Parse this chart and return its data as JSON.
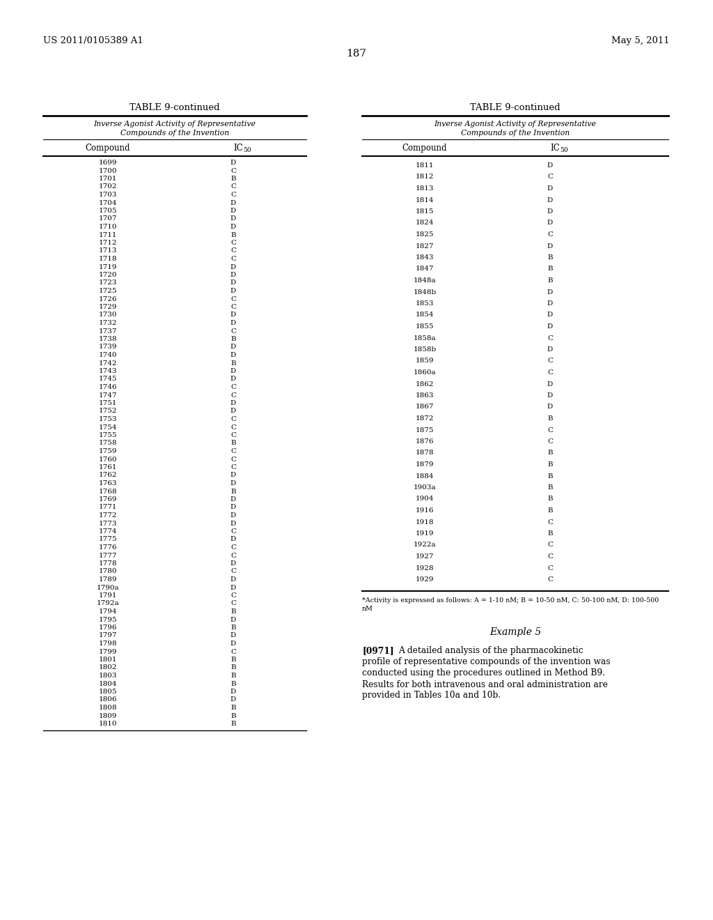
{
  "patent_number": "US 2011/0105389 A1",
  "patent_date": "May 5, 2011",
  "page_number": "187",
  "table_title": "TABLE 9-continued",
  "col1_header": "Compound",
  "col2_header": "IC",
  "col2_subscript": "50",
  "left_data": [
    [
      "1699",
      "D"
    ],
    [
      "1700",
      "C"
    ],
    [
      "1701",
      "B"
    ],
    [
      "1702",
      "C"
    ],
    [
      "1703",
      "C"
    ],
    [
      "1704",
      "D"
    ],
    [
      "1705",
      "D"
    ],
    [
      "1707",
      "D"
    ],
    [
      "1710",
      "D"
    ],
    [
      "1711",
      "B"
    ],
    [
      "1712",
      "C"
    ],
    [
      "1713",
      "C"
    ],
    [
      "1718",
      "C"
    ],
    [
      "1719",
      "D"
    ],
    [
      "1720",
      "D"
    ],
    [
      "1723",
      "D"
    ],
    [
      "1725",
      "D"
    ],
    [
      "1726",
      "C"
    ],
    [
      "1729",
      "C"
    ],
    [
      "1730",
      "D"
    ],
    [
      "1732",
      "D"
    ],
    [
      "1737",
      "C"
    ],
    [
      "1738",
      "B"
    ],
    [
      "1739",
      "D"
    ],
    [
      "1740",
      "D"
    ],
    [
      "1742",
      "B"
    ],
    [
      "1743",
      "D"
    ],
    [
      "1745",
      "D"
    ],
    [
      "1746",
      "C"
    ],
    [
      "1747",
      "C"
    ],
    [
      "1751",
      "D"
    ],
    [
      "1752",
      "D"
    ],
    [
      "1753",
      "C"
    ],
    [
      "1754",
      "C"
    ],
    [
      "1755",
      "C"
    ],
    [
      "1758",
      "B"
    ],
    [
      "1759",
      "C"
    ],
    [
      "1760",
      "C"
    ],
    [
      "1761",
      "C"
    ],
    [
      "1762",
      "D"
    ],
    [
      "1763",
      "D"
    ],
    [
      "1768",
      "B"
    ],
    [
      "1769",
      "D"
    ],
    [
      "1771",
      "D"
    ],
    [
      "1772",
      "D"
    ],
    [
      "1773",
      "D"
    ],
    [
      "1774",
      "C"
    ],
    [
      "1775",
      "D"
    ],
    [
      "1776",
      "C"
    ],
    [
      "1777",
      "C"
    ],
    [
      "1778",
      "D"
    ],
    [
      "1780",
      "C"
    ],
    [
      "1789",
      "D"
    ],
    [
      "1790a",
      "D"
    ],
    [
      "1791",
      "C"
    ],
    [
      "1792a",
      "C"
    ],
    [
      "1794",
      "B"
    ],
    [
      "1795",
      "D"
    ],
    [
      "1796",
      "B"
    ],
    [
      "1797",
      "D"
    ],
    [
      "1798",
      "D"
    ],
    [
      "1799",
      "C"
    ],
    [
      "1801",
      "B"
    ],
    [
      "1802",
      "B"
    ],
    [
      "1803",
      "B"
    ],
    [
      "1804",
      "B"
    ],
    [
      "1805",
      "D"
    ],
    [
      "1806",
      "D"
    ],
    [
      "1808",
      "B"
    ],
    [
      "1809",
      "B"
    ],
    [
      "1810",
      "B"
    ]
  ],
  "right_data": [
    [
      "1811",
      "D"
    ],
    [
      "1812",
      "C"
    ],
    [
      "1813",
      "D"
    ],
    [
      "1814",
      "D"
    ],
    [
      "1815",
      "D"
    ],
    [
      "1824",
      "D"
    ],
    [
      "1825",
      "C"
    ],
    [
      "1827",
      "D"
    ],
    [
      "1843",
      "B"
    ],
    [
      "1847",
      "B"
    ],
    [
      "1848a",
      "B"
    ],
    [
      "1848b",
      "D"
    ],
    [
      "1853",
      "D"
    ],
    [
      "1854",
      "D"
    ],
    [
      "1855",
      "D"
    ],
    [
      "1858a",
      "C"
    ],
    [
      "1858b",
      "D"
    ],
    [
      "1859",
      "C"
    ],
    [
      "1860a",
      "C"
    ],
    [
      "1862",
      "D"
    ],
    [
      "1863",
      "D"
    ],
    [
      "1867",
      "D"
    ],
    [
      "1872",
      "B"
    ],
    [
      "1875",
      "C"
    ],
    [
      "1876",
      "C"
    ],
    [
      "1878",
      "B"
    ],
    [
      "1879",
      "B"
    ],
    [
      "1884",
      "B"
    ],
    [
      "1903a",
      "B"
    ],
    [
      "1904",
      "B"
    ],
    [
      "1916",
      "B"
    ],
    [
      "1918",
      "C"
    ],
    [
      "1919",
      "B"
    ],
    [
      "1922a",
      "C"
    ],
    [
      "1927",
      "C"
    ],
    [
      "1928",
      "C"
    ],
    [
      "1929",
      "C"
    ]
  ],
  "footnote_line1": "*Activity is expressed as follows: A = 1-10 nM; B = 10-50 nM, C: 50-100 nM, D: 100-500",
  "footnote_line2": "nM",
  "example_title": "Example 5",
  "example_bold": "[0971]",
  "example_indent": "    ",
  "example_body": "A detailed analysis of the pharmacokinetic profile of representative compounds of the invention was conducted using the procedures outlined in Method B9. Results for both intravenous and oral administration are provided in Tables 10a and 10b."
}
